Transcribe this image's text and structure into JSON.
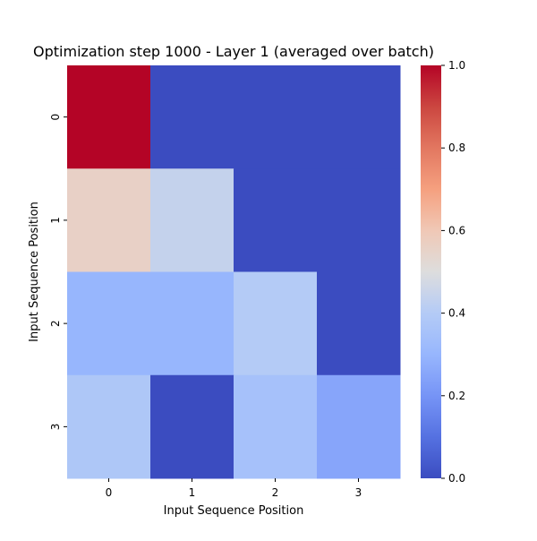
{
  "chart_data": {
    "type": "heatmap",
    "title": "Optimization step 1000 - Layer 1 (averaged over batch)",
    "xlabel": "Input Sequence Position",
    "ylabel": "Input Sequence Position",
    "x_categories": [
      "0",
      "1",
      "2",
      "3"
    ],
    "y_categories": [
      "0",
      "1",
      "2",
      "3"
    ],
    "values": [
      [
        1.0,
        0.0,
        0.0,
        0.0
      ],
      [
        0.56,
        0.44,
        0.0,
        0.0
      ],
      [
        0.3,
        0.3,
        0.4,
        0.0
      ],
      [
        0.38,
        0.0,
        0.35,
        0.25
      ]
    ],
    "colormap": "coolwarm",
    "vmin": 0.0,
    "vmax": 1.0,
    "colorbar": {
      "ticks": [
        0.0,
        0.2,
        0.4,
        0.6,
        0.8,
        1.0
      ],
      "tick_labels": [
        "0.0",
        "0.2",
        "0.4",
        "0.6",
        "0.8",
        "1.0"
      ]
    },
    "grid": false
  }
}
